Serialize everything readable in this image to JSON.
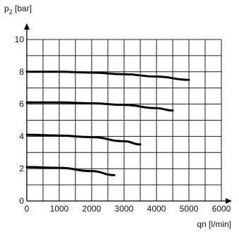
{
  "chart_data": {
    "type": "line",
    "ylabel_main": "p",
    "ylabel_sub": "2",
    "ylabel_unit": " [bar]",
    "xlabel": "qn [l/min]",
    "xlim": [
      0,
      6000
    ],
    "ylim": [
      0,
      10
    ],
    "x_ticks": [
      0,
      1000,
      2000,
      3000,
      4000,
      5000,
      6000
    ],
    "y_ticks": [
      0,
      2,
      4,
      6,
      8,
      10
    ],
    "x_tick_labels": [
      "0",
      "1000",
      "2000",
      "3000",
      "4000",
      "5000",
      "6000"
    ],
    "y_tick_labels": [
      "0",
      "2",
      "4",
      "6",
      "8",
      "10"
    ],
    "grid": true,
    "grid_x_step": 500,
    "grid_y_step": 1,
    "series": [
      {
        "x": [
          0,
          1000,
          2000,
          2700
        ],
        "y": [
          2.1,
          2.05,
          1.85,
          1.6
        ]
      },
      {
        "x": [
          0,
          1000,
          2000,
          3000,
          3500
        ],
        "y": [
          4.1,
          4.05,
          3.95,
          3.7,
          3.5
        ]
      },
      {
        "x": [
          0,
          1000,
          2000,
          3000,
          4000,
          4500
        ],
        "y": [
          6.1,
          6.1,
          6.05,
          5.95,
          5.75,
          5.6
        ]
      },
      {
        "x": [
          0,
          1000,
          2000,
          3000,
          4000,
          5000
        ],
        "y": [
          8.0,
          8.0,
          7.95,
          7.85,
          7.7,
          7.5
        ]
      }
    ],
    "colors": {
      "line": "#000000",
      "grid": "#1a1a1a"
    }
  }
}
